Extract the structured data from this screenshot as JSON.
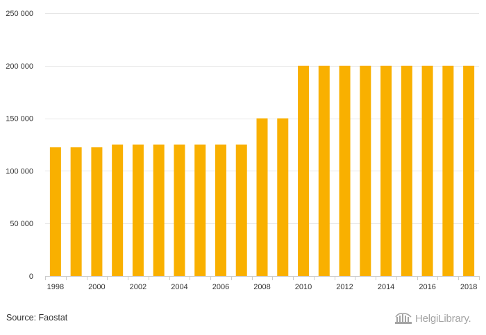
{
  "chart_data": {
    "type": "bar",
    "categories": [
      "1998",
      "1999",
      "2000",
      "2001",
      "2002",
      "2003",
      "2004",
      "2005",
      "2006",
      "2007",
      "2008",
      "2009",
      "2010",
      "2011",
      "2012",
      "2013",
      "2014",
      "2015",
      "2016",
      "2017",
      "2018"
    ],
    "values": [
      122500,
      122500,
      122500,
      125000,
      125000,
      125000,
      125000,
      125000,
      125000,
      125000,
      150000,
      150000,
      200000,
      200000,
      200000,
      200000,
      200000,
      200000,
      200000,
      200000,
      200000
    ],
    "x_tick_labels": [
      "1998",
      "2000",
      "2002",
      "2004",
      "2006",
      "2008",
      "2010",
      "2012",
      "2014",
      "2016",
      "2018"
    ],
    "y_ticks": [
      0,
      50000,
      100000,
      150000,
      200000,
      250000
    ],
    "y_tick_labels": [
      "0",
      "50 000",
      "100 000",
      "150 000",
      "200 000",
      "250 000"
    ],
    "ylim": [
      0,
      250000
    ],
    "grid": true,
    "title": "",
    "xlabel": "",
    "ylabel": "",
    "bar_color": "#f9b000",
    "grid_color": "#e6e6e6"
  },
  "footer": {
    "source": "Source: Faostat",
    "brand": "HelgiLibrary."
  }
}
